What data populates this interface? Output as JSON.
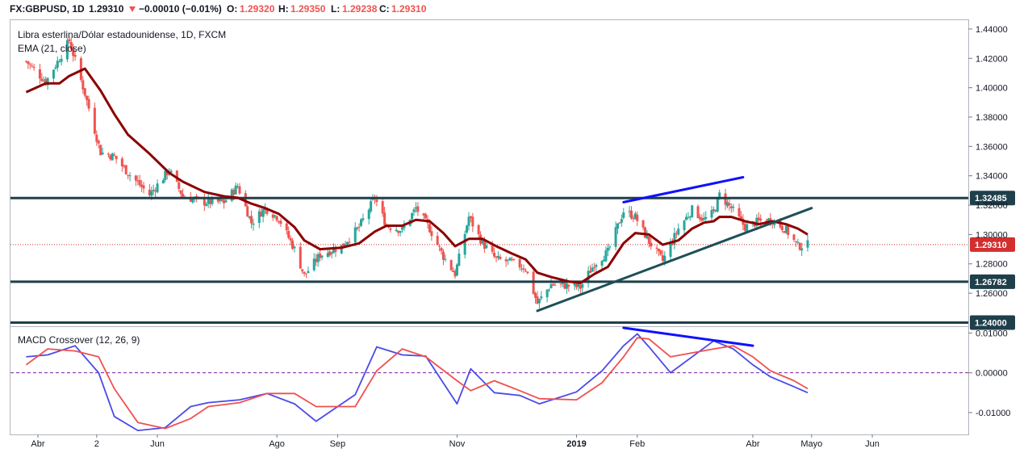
{
  "header": {
    "symbol": "FX:GBPUSD, 1D",
    "last": "1.29310",
    "change": "−0.00010 (−0.01%)",
    "o_label": "O:",
    "o_value": "1.29320",
    "h_label": "H:",
    "h_value": "1.29350",
    "l_label": "L:",
    "l_value": "1.29238",
    "c_label": "C:",
    "c_value": "1.29310",
    "arrow_icon": "triangle-down-icon"
  },
  "colors": {
    "up_candle": "#26a69a",
    "down_candle": "#ef5350",
    "ema": "#8b0000",
    "hline": "#1f3f4a",
    "trend": "#1f4f57",
    "blue_trend": "#1010ff",
    "macd": "#4a4ae8",
    "signal": "#f05050",
    "price_line": "#d32f2f",
    "zero_line": "#7b1fa2"
  },
  "chart_data": [
    {
      "type": "candlestick",
      "title": "Libra esterlina/Dólar estadounidense, 1D, FXCM",
      "indicator_label": "EMA (21, close)",
      "price_axis_ticks": [
        "1.44000",
        "1.42000",
        "1.40000",
        "1.38000",
        "1.36000",
        "1.34000",
        "1.32000",
        "1.30000",
        "1.28000",
        "1.26000"
      ],
      "ylim": [
        1.2375,
        1.446
      ],
      "grid": false,
      "x_axis_ticks": [
        {
          "label": "Abr",
          "date": "2018-04-01"
        },
        {
          "label": "2",
          "date": "2018-05-01"
        },
        {
          "label": "Jun",
          "date": "2018-06-01"
        },
        {
          "label": "Ago",
          "date": "2018-08-01"
        },
        {
          "label": "Sep",
          "date": "2018-09-01"
        },
        {
          "label": "Nov",
          "date": "2018-11-01"
        },
        {
          "label": "2019",
          "date": "2019-01-01",
          "bold": true
        },
        {
          "label": "Feb",
          "date": "2019-02-01"
        },
        {
          "label": "Abr",
          "date": "2019-04-01"
        },
        {
          "label": "Mayo",
          "date": "2019-05-01"
        },
        {
          "label": "Jun",
          "date": "2019-06-01"
        }
      ],
      "horizontal_levels": [
        {
          "price": 1.32485,
          "label": "1.32485"
        },
        {
          "price": 1.26782,
          "label": "1.26782"
        },
        {
          "price": 1.24,
          "label": "1.24000"
        }
      ],
      "current_price": {
        "price": 1.2931,
        "label": "1.29310"
      },
      "price_path": [
        [
          "2018-03-26",
          1.418
        ],
        [
          "2018-04-05",
          1.404
        ],
        [
          "2018-04-12",
          1.42
        ],
        [
          "2018-04-17",
          1.432
        ],
        [
          "2018-04-25",
          1.396
        ],
        [
          "2018-05-03",
          1.356
        ],
        [
          "2018-05-10",
          1.353
        ],
        [
          "2018-05-17",
          1.342
        ],
        [
          "2018-05-28",
          1.327
        ],
        [
          "2018-06-07",
          1.344
        ],
        [
          "2018-06-14",
          1.326
        ],
        [
          "2018-06-25",
          1.322
        ],
        [
          "2018-07-05",
          1.322
        ],
        [
          "2018-07-12",
          1.333
        ],
        [
          "2018-07-19",
          1.308
        ],
        [
          "2018-07-26",
          1.318
        ],
        [
          "2018-08-02",
          1.311
        ],
        [
          "2018-08-10",
          1.29
        ],
        [
          "2018-08-15",
          1.272
        ],
        [
          "2018-08-23",
          1.286
        ],
        [
          "2018-09-03",
          1.292
        ],
        [
          "2018-09-12",
          1.305
        ],
        [
          "2018-09-20",
          1.325
        ],
        [
          "2018-09-26",
          1.306
        ],
        [
          "2018-10-04",
          1.303
        ],
        [
          "2018-10-11",
          1.318
        ],
        [
          "2018-10-18",
          1.304
        ],
        [
          "2018-10-25",
          1.285
        ],
        [
          "2018-10-31",
          1.273
        ],
        [
          "2018-11-07",
          1.312
        ],
        [
          "2018-11-14",
          1.294
        ],
        [
          "2018-11-21",
          1.283
        ],
        [
          "2018-11-29",
          1.281
        ],
        [
          "2018-12-06",
          1.277
        ],
        [
          "2018-12-12",
          1.253
        ],
        [
          "2018-12-19",
          1.266
        ],
        [
          "2018-12-28",
          1.265
        ],
        [
          "2019-01-03",
          1.264
        ],
        [
          "2019-01-10",
          1.28
        ],
        [
          "2019-01-17",
          1.288
        ],
        [
          "2019-01-25",
          1.316
        ],
        [
          "2019-01-31",
          1.312
        ],
        [
          "2019-02-07",
          1.295
        ],
        [
          "2019-02-14",
          1.282
        ],
        [
          "2019-02-22",
          1.304
        ],
        [
          "2019-03-01",
          1.317
        ],
        [
          "2019-03-07",
          1.31
        ],
        [
          "2019-03-12",
          1.315
        ],
        [
          "2019-03-15",
          1.327
        ],
        [
          "2019-03-21",
          1.318
        ],
        [
          "2019-03-28",
          1.305
        ],
        [
          "2019-04-04",
          1.309
        ],
        [
          "2019-04-11",
          1.31
        ],
        [
          "2019-04-18",
          1.303
        ],
        [
          "2019-04-24",
          1.292
        ],
        [
          "2019-04-29",
          1.2931
        ]
      ],
      "ema_path": [
        [
          "2018-03-26",
          1.397
        ],
        [
          "2018-04-05",
          1.403
        ],
        [
          "2018-04-12",
          1.403
        ],
        [
          "2018-04-17",
          1.408
        ],
        [
          "2018-04-25",
          1.413
        ],
        [
          "2018-05-03",
          1.398
        ],
        [
          "2018-05-10",
          1.382
        ],
        [
          "2018-05-17",
          1.368
        ],
        [
          "2018-05-28",
          1.355
        ],
        [
          "2018-06-07",
          1.342
        ],
        [
          "2018-06-14",
          1.336
        ],
        [
          "2018-06-25",
          1.329
        ],
        [
          "2018-07-05",
          1.326
        ],
        [
          "2018-07-12",
          1.325
        ],
        [
          "2018-07-19",
          1.321
        ],
        [
          "2018-07-26",
          1.318
        ],
        [
          "2018-08-02",
          1.314
        ],
        [
          "2018-08-10",
          1.305
        ],
        [
          "2018-08-15",
          1.296
        ],
        [
          "2018-08-23",
          1.29
        ],
        [
          "2018-09-03",
          1.291
        ],
        [
          "2018-09-12",
          1.294
        ],
        [
          "2018-09-20",
          1.302
        ],
        [
          "2018-09-26",
          1.306
        ],
        [
          "2018-10-04",
          1.306
        ],
        [
          "2018-10-11",
          1.31
        ],
        [
          "2018-10-18",
          1.309
        ],
        [
          "2018-10-25",
          1.301
        ],
        [
          "2018-10-31",
          1.292
        ],
        [
          "2018-11-07",
          1.297
        ],
        [
          "2018-11-14",
          1.297
        ],
        [
          "2018-11-21",
          1.292
        ],
        [
          "2018-11-29",
          1.287
        ],
        [
          "2018-12-06",
          1.283
        ],
        [
          "2018-12-12",
          1.274
        ],
        [
          "2018-12-19",
          1.271
        ],
        [
          "2018-12-28",
          1.268
        ],
        [
          "2019-01-03",
          1.267
        ],
        [
          "2019-01-10",
          1.273
        ],
        [
          "2019-01-17",
          1.278
        ],
        [
          "2019-01-25",
          1.294
        ],
        [
          "2019-01-31",
          1.301
        ],
        [
          "2019-02-07",
          1.3
        ],
        [
          "2019-02-14",
          1.293
        ],
        [
          "2019-02-22",
          1.296
        ],
        [
          "2019-03-01",
          1.304
        ],
        [
          "2019-03-07",
          1.308
        ],
        [
          "2019-03-12",
          1.309
        ],
        [
          "2019-03-15",
          1.312
        ],
        [
          "2019-03-21",
          1.312
        ],
        [
          "2019-03-28",
          1.309
        ],
        [
          "2019-04-04",
          1.307
        ],
        [
          "2019-04-11",
          1.309
        ],
        [
          "2019-04-18",
          1.307
        ],
        [
          "2019-04-24",
          1.304
        ],
        [
          "2019-04-29",
          1.3
        ]
      ],
      "trendlines": [
        {
          "name": "support",
          "from": [
            "2018-12-12",
            1.248
          ],
          "to": [
            "2019-05-01",
            1.318
          ],
          "color": "trend"
        },
        {
          "name": "higher-highs",
          "from": [
            "2019-01-25",
            1.322
          ],
          "to": [
            "2019-03-27",
            1.339
          ],
          "color": "blue_trend"
        }
      ]
    },
    {
      "type": "line",
      "title": "MACD Crossover (12, 26, 9)",
      "axis_ticks": [
        "0.01000",
        "0.00000",
        "-0.01000"
      ],
      "ylim": [
        -0.0155,
        0.0115
      ],
      "series": [
        {
          "role": "macd",
          "values": [
            [
              "2018-03-26",
              0.004
            ],
            [
              "2018-04-06",
              0.0045
            ],
            [
              "2018-04-20",
              0.0068
            ],
            [
              "2018-05-02",
              0.0
            ],
            [
              "2018-05-10",
              -0.011
            ],
            [
              "2018-05-22",
              -0.0145
            ],
            [
              "2018-06-05",
              -0.0138
            ],
            [
              "2018-06-18",
              -0.0085
            ],
            [
              "2018-06-27",
              -0.0075
            ],
            [
              "2018-07-13",
              -0.0068
            ],
            [
              "2018-07-27",
              -0.0052
            ],
            [
              "2018-08-10",
              -0.0078
            ],
            [
              "2018-08-21",
              -0.0122
            ],
            [
              "2018-09-10",
              -0.0055
            ],
            [
              "2018-09-21",
              0.0065
            ],
            [
              "2018-10-04",
              0.0045
            ],
            [
              "2018-10-16",
              0.0042
            ],
            [
              "2018-11-01",
              -0.0078
            ],
            [
              "2018-11-08",
              0.001
            ],
            [
              "2018-11-20",
              -0.005
            ],
            [
              "2018-12-03",
              -0.0057
            ],
            [
              "2018-12-13",
              -0.0078
            ],
            [
              "2019-01-01",
              -0.0048
            ],
            [
              "2019-01-14",
              0.0005
            ],
            [
              "2019-01-25",
              0.0068
            ],
            [
              "2019-02-01",
              0.0098
            ],
            [
              "2019-02-07",
              0.0065
            ],
            [
              "2019-02-18",
              0.0
            ],
            [
              "2019-03-12",
              0.008
            ],
            [
              "2019-03-22",
              0.006
            ],
            [
              "2019-04-01",
              0.002
            ],
            [
              "2019-04-10",
              -0.001
            ],
            [
              "2019-04-22",
              -0.0035
            ],
            [
              "2019-04-29",
              -0.005
            ]
          ]
        },
        {
          "role": "signal",
          "values": [
            [
              "2018-03-26",
              0.002
            ],
            [
              "2018-04-06",
              0.006
            ],
            [
              "2018-04-20",
              0.0055
            ],
            [
              "2018-05-02",
              0.004
            ],
            [
              "2018-05-10",
              -0.004
            ],
            [
              "2018-05-22",
              -0.0125
            ],
            [
              "2018-06-05",
              -0.014
            ],
            [
              "2018-06-18",
              -0.0115
            ],
            [
              "2018-06-27",
              -0.0085
            ],
            [
              "2018-07-13",
              -0.0075
            ],
            [
              "2018-07-27",
              -0.0052
            ],
            [
              "2018-08-10",
              -0.0052
            ],
            [
              "2018-08-21",
              -0.0085
            ],
            [
              "2018-09-10",
              -0.0085
            ],
            [
              "2018-09-21",
              0.0005
            ],
            [
              "2018-10-04",
              0.006
            ],
            [
              "2018-10-16",
              0.004
            ],
            [
              "2018-11-01",
              -0.002
            ],
            [
              "2018-11-08",
              -0.0045
            ],
            [
              "2018-11-20",
              -0.002
            ],
            [
              "2018-12-03",
              -0.0045
            ],
            [
              "2018-12-13",
              -0.0065
            ],
            [
              "2019-01-01",
              -0.0068
            ],
            [
              "2019-01-14",
              -0.0025
            ],
            [
              "2019-01-25",
              0.004
            ],
            [
              "2019-02-01",
              0.0088
            ],
            [
              "2019-02-07",
              0.0085
            ],
            [
              "2019-02-18",
              0.004
            ],
            [
              "2019-03-12",
              0.006
            ],
            [
              "2019-03-22",
              0.0068
            ],
            [
              "2019-04-01",
              0.004
            ],
            [
              "2019-04-10",
              0.0005
            ],
            [
              "2019-04-22",
              -0.002
            ],
            [
              "2019-04-29",
              -0.004
            ]
          ]
        }
      ],
      "trendlines": [
        {
          "name": "divergence",
          "from": [
            "2019-01-25",
            0.0113
          ],
          "to": [
            "2019-04-01",
            0.0068
          ],
          "color": "blue_trend"
        }
      ]
    }
  ]
}
